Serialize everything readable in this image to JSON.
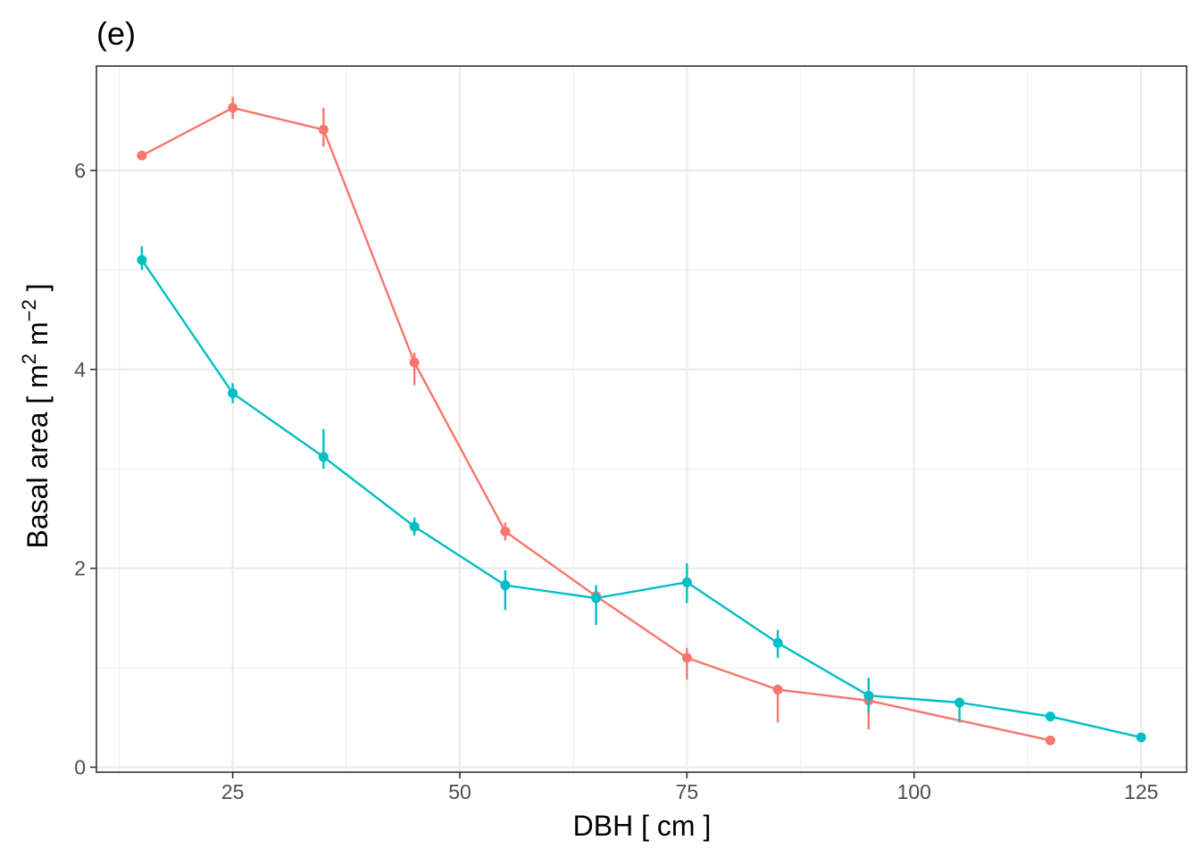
{
  "chart_data": {
    "type": "line",
    "title": "(e)",
    "xlabel": "DBH [ cm ]",
    "ylabel_main": "Basal area [ m",
    "ylabel_sup1": "2",
    "ylabel_mid": " m",
    "ylabel_sup2": "−2",
    "ylabel_end": " ]",
    "xlim": [
      10,
      130
    ],
    "ylim": [
      -0.05,
      7.05
    ],
    "x_ticks": [
      25,
      50,
      75,
      100,
      125
    ],
    "x_tick_labels": [
      "25",
      "50",
      "75",
      "100",
      "125"
    ],
    "y_ticks": [
      0,
      2,
      4,
      6
    ],
    "y_tick_labels": [
      "0",
      "2",
      "4",
      "6"
    ],
    "grid": true,
    "series": [
      {
        "color": "#F8766D",
        "points": [
          {
            "x": 15,
            "y": 6.15,
            "lo": 6.15,
            "hi": 6.15
          },
          {
            "x": 25,
            "y": 6.63,
            "lo": 6.52,
            "hi": 6.74
          },
          {
            "x": 35,
            "y": 6.41,
            "lo": 6.24,
            "hi": 6.63
          },
          {
            "x": 45,
            "y": 4.07,
            "lo": 3.84,
            "hi": 4.17
          },
          {
            "x": 55,
            "y": 2.37,
            "lo": 2.28,
            "hi": 2.46
          },
          {
            "x": 65,
            "y": 1.72,
            "lo": 1.72,
            "hi": 1.72
          },
          {
            "x": 75,
            "y": 1.1,
            "lo": 0.88,
            "hi": 1.2
          },
          {
            "x": 85,
            "y": 0.78,
            "lo": 0.45,
            "hi": 0.8
          },
          {
            "x": 95,
            "y": 0.67,
            "lo": 0.38,
            "hi": 0.72
          },
          {
            "x": 115,
            "y": 0.27,
            "lo": 0.27,
            "hi": 0.27
          }
        ]
      },
      {
        "color": "#00BFC4",
        "points": [
          {
            "x": 15,
            "y": 5.1,
            "lo": 5.0,
            "hi": 5.24
          },
          {
            "x": 25,
            "y": 3.76,
            "lo": 3.66,
            "hi": 3.86
          },
          {
            "x": 35,
            "y": 3.12,
            "lo": 3.0,
            "hi": 3.4
          },
          {
            "x": 45,
            "y": 2.42,
            "lo": 2.33,
            "hi": 2.51
          },
          {
            "x": 55,
            "y": 1.83,
            "lo": 1.58,
            "hi": 1.98
          },
          {
            "x": 65,
            "y": 1.7,
            "lo": 1.43,
            "hi": 1.83
          },
          {
            "x": 75,
            "y": 1.86,
            "lo": 1.65,
            "hi": 2.05
          },
          {
            "x": 85,
            "y": 1.25,
            "lo": 1.1,
            "hi": 1.38
          },
          {
            "x": 95,
            "y": 0.72,
            "lo": 0.55,
            "hi": 0.9
          },
          {
            "x": 105,
            "y": 0.65,
            "lo": 0.45,
            "hi": 0.7
          },
          {
            "x": 115,
            "y": 0.51,
            "lo": 0.51,
            "hi": 0.51
          },
          {
            "x": 125,
            "y": 0.3,
            "lo": 0.3,
            "hi": 0.3
          }
        ]
      }
    ]
  }
}
